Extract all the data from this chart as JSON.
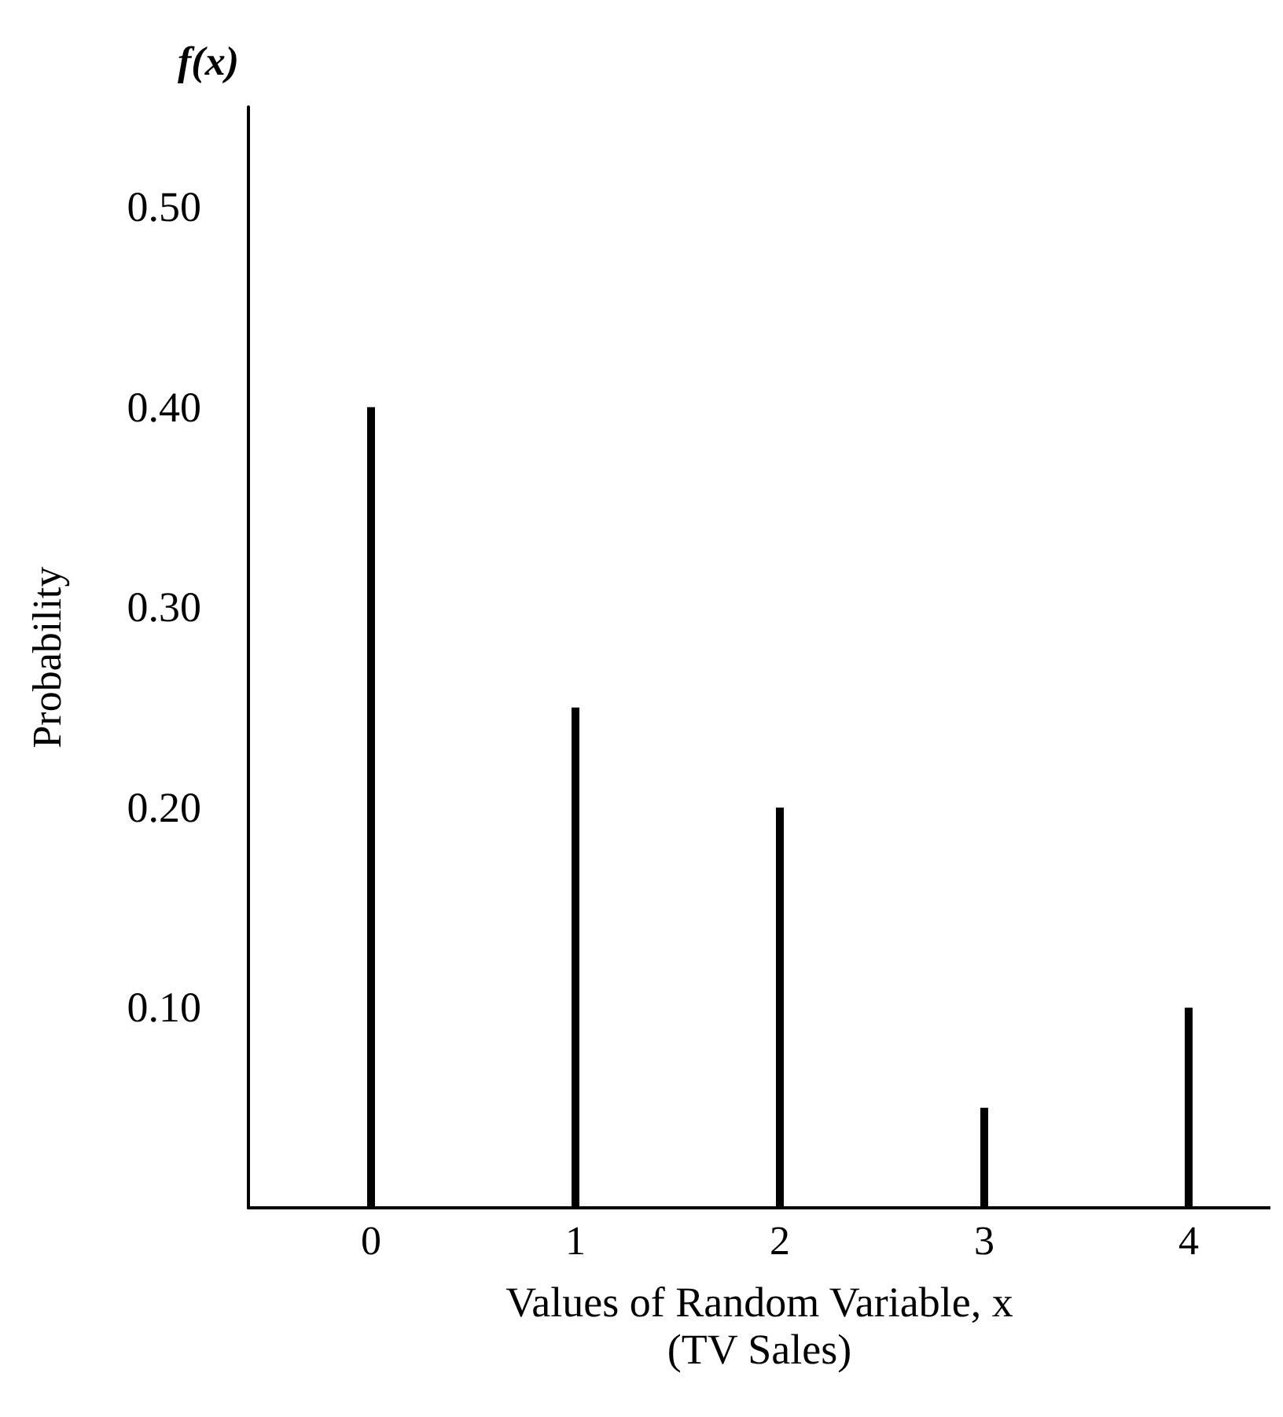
{
  "chart_data": {
    "type": "bar",
    "ylabel": "Probability",
    "xlabel": "Values of Random Variable, x\n(TV Sales)",
    "annotations": [
      "f(x)"
    ],
    "x": [
      0,
      1,
      2,
      3,
      4
    ],
    "values": [
      0.4,
      0.25,
      0.2,
      0.05,
      0.1
    ],
    "color": "#000000",
    "xlim": [
      -0.6,
      4.4
    ],
    "xticks": [
      0,
      1,
      2,
      3,
      4
    ],
    "ylim": [
      0,
      0.55
    ],
    "yticks": [
      {
        "value": 0.1,
        "label": "0.10"
      },
      {
        "value": 0.2,
        "label": "0.20"
      },
      {
        "value": 0.3,
        "label": "0.30"
      },
      {
        "value": 0.4,
        "label": "0.40"
      },
      {
        "value": 0.5,
        "label": "0.50"
      }
    ],
    "grid": false
  }
}
